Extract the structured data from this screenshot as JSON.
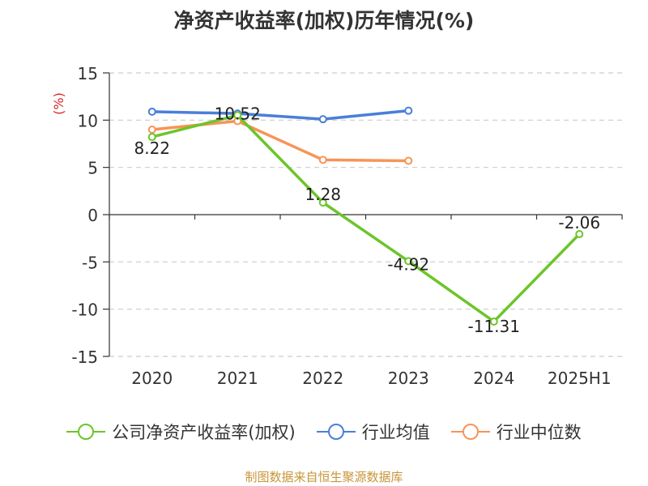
{
  "title": "净资产收益率(加权)历年情况(%)",
  "source_note": "制图数据来自恒生聚源数据库",
  "chart_data": {
    "type": "line",
    "title": "净资产收益率(加权)历年情况(%)",
    "ylabel": "(%)",
    "xlabel": "",
    "x": [
      "2020",
      "2021",
      "2022",
      "2023",
      "2024",
      "2025H1"
    ],
    "ylim": [
      -15,
      15
    ],
    "yticks": [
      15,
      10,
      5,
      0,
      -5,
      -10,
      -15
    ],
    "grid": true,
    "legend_position": "bottom",
    "series": [
      {
        "name": "公司净资产收益率(加权)",
        "color": "#6cc52a",
        "values": [
          8.22,
          10.52,
          1.28,
          -4.92,
          -11.31,
          -2.06
        ],
        "labels": [
          "8.22",
          "10.52",
          "1.28",
          "-4.92",
          "-11.31",
          "-2.06"
        ]
      },
      {
        "name": "行业均值",
        "color": "#4a7fd9",
        "values": [
          10.9,
          10.7,
          10.1,
          11.0,
          null,
          null
        ]
      },
      {
        "name": "行业中位数",
        "color": "#f79457",
        "values": [
          9.0,
          9.9,
          5.8,
          5.7,
          null,
          null
        ]
      }
    ]
  }
}
